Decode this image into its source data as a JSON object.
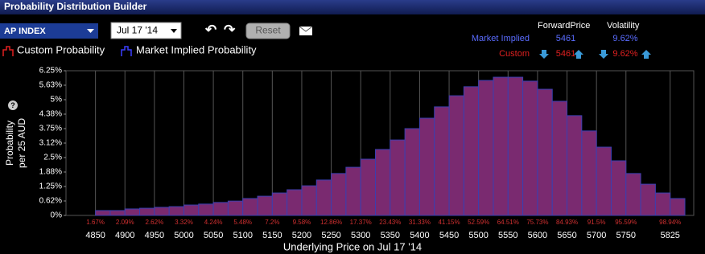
{
  "window": {
    "title": "Probability Distribution Builder"
  },
  "toolbar": {
    "symbol": "AP INDEX",
    "date": "Jul 17 '14",
    "reset": "Reset"
  },
  "summary": {
    "headers": [
      "ForwardPrice",
      "Volatility"
    ],
    "rows": [
      {
        "label": "Market Implied",
        "forward": 5461,
        "volatility": "9.62%"
      },
      {
        "label": "Custom",
        "forward": 5461,
        "volatility": "9.62%"
      }
    ]
  },
  "legend": [
    "Custom Probability",
    "Market Implied Probability"
  ],
  "chart_data": {
    "type": "histogram",
    "y_label": [
      "Probability",
      "per 25 AUD"
    ],
    "x_label": "Underlying Price on Jul 17 '14",
    "bins": [
      4850,
      4875,
      4900,
      4925,
      4950,
      4975,
      5000,
      5025,
      5050,
      5075,
      5100,
      5125,
      5150,
      5175,
      5200,
      5225,
      5250,
      5275,
      5300,
      5325,
      5350,
      5375,
      5400,
      5425,
      5450,
      5475,
      5500,
      5525,
      5550,
      5575,
      5600,
      5625,
      5650,
      5675,
      5700,
      5725,
      5750,
      5775,
      5800,
      5825,
      5850
    ],
    "values": [
      0.21,
      0.21,
      0.28,
      0.31,
      0.35,
      0.38,
      0.45,
      0.49,
      0.56,
      0.62,
      0.73,
      0.83,
      0.97,
      1.11,
      1.28,
      1.53,
      1.81,
      2.08,
      2.43,
      2.85,
      3.26,
      3.75,
      4.2,
      4.69,
      5.17,
      5.56,
      5.83,
      5.97,
      5.97,
      5.8,
      5.45,
      4.93,
      4.31,
      3.65,
      2.95,
      2.36,
      1.81,
      1.35,
      0.97,
      0.73
    ],
    "color": "#7a2a70",
    "edge_color": "#3b3fb0",
    "xlim": [
      4800,
      5865
    ],
    "xticks": [
      4850,
      4900,
      4950,
      5000,
      5050,
      5100,
      5150,
      5200,
      5250,
      5300,
      5350,
      5400,
      5450,
      5500,
      5550,
      5600,
      5650,
      5700,
      5750,
      5825
    ],
    "ylim": [
      0,
      6.25
    ],
    "yticks": [
      {
        "value": 0,
        "label": "0%"
      },
      {
        "value": 0.625,
        "label": "0.62%"
      },
      {
        "value": 1.25,
        "label": "1.25%"
      },
      {
        "value": 1.875,
        "label": "1.88%"
      },
      {
        "value": 2.5,
        "label": "2.5%"
      },
      {
        "value": 3.125,
        "label": "3.12%"
      },
      {
        "value": 3.75,
        "label": "3.75%"
      },
      {
        "value": 4.375,
        "label": "4.38%"
      },
      {
        "value": 5,
        "label": "5%"
      },
      {
        "value": 5.625,
        "label": "5.63%"
      },
      {
        "value": 6.25,
        "label": "6.25%"
      }
    ],
    "grid": true,
    "cumulative": {
      "values": [
        1.67,
        2.09,
        2.62,
        3.32,
        4.24,
        5.48,
        7.2,
        9.58,
        12.86,
        17.37,
        23.43,
        31.33,
        41.15,
        52.59,
        64.51,
        75.73,
        84.93,
        91.5,
        95.59,
        98.94
      ],
      "value_labels": [
        "1.67%",
        "2.09%",
        "2.62%",
        "3.32%",
        "4.24%",
        "5.48%",
        "7.2%",
        "9.58%",
        "12.86%",
        "17.37%",
        "23.43%",
        "31.33%",
        "41.15%",
        "52.59%",
        "64.51%",
        "75.73%",
        "84.93%",
        "91.5%",
        "95.59%",
        "98.94%"
      ],
      "color": "#d03030"
    }
  }
}
